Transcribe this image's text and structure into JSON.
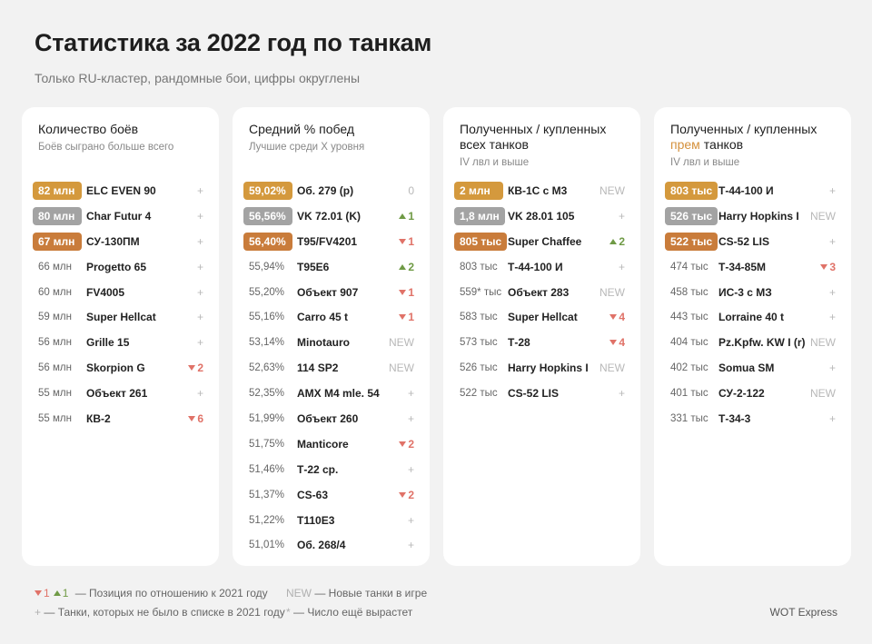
{
  "header": {
    "title": "Статистика за 2022 год по танкам",
    "subtitle": "Только RU-кластер, рандомные бои, цифры округлены"
  },
  "medal_colors": {
    "gold": "#d4993d",
    "silver": "#a3a3a3",
    "bronze": "#c97c3b"
  },
  "accent_color": "#d4913d",
  "cards": [
    {
      "title": [
        [
          {
            "text": "Количество боёв"
          }
        ]
      ],
      "subtitle": "Боёв сыграно больше всего",
      "rows": [
        {
          "value": "82 млн",
          "medal": "gold",
          "name": "ELC EVEN 90",
          "change": "+"
        },
        {
          "value": "80 млн",
          "medal": "silver",
          "name": "Char Futur 4",
          "change": "+"
        },
        {
          "value": "67 млн",
          "medal": "bronze",
          "name": "СУ-130ПМ",
          "change": "+"
        },
        {
          "value": "66 млн",
          "name": "Progetto 65",
          "change": "+"
        },
        {
          "value": "60 млн",
          "name": "FV4005",
          "change": "+"
        },
        {
          "value": "59 млн",
          "name": "Super Hellcat",
          "change": "+"
        },
        {
          "value": "56 млн",
          "name": "Grille 15",
          "change": "+"
        },
        {
          "value": "56 млн",
          "name": "Skorpion G",
          "change": {
            "dir": "down",
            "text": "2"
          }
        },
        {
          "value": "55 млн",
          "name": "Объект 261",
          "change": "+"
        },
        {
          "value": "55 млн",
          "name": "КВ-2",
          "change": {
            "dir": "down",
            "text": "6"
          }
        }
      ]
    },
    {
      "title": [
        [
          {
            "text": "Средний % побед"
          }
        ]
      ],
      "subtitle": "Лучшие среди X уровня",
      "rows": [
        {
          "value": "59,02%",
          "medal": "gold",
          "name": "Об. 279 (р)",
          "change": "0"
        },
        {
          "value": "56,56%",
          "medal": "silver",
          "name": "VK 72.01 (K)",
          "change": {
            "dir": "up",
            "text": "1"
          }
        },
        {
          "value": "56,40%",
          "medal": "bronze",
          "name": "T95/FV4201",
          "change": {
            "dir": "down",
            "text": "1"
          }
        },
        {
          "value": "55,94%",
          "name": "T95E6",
          "change": {
            "dir": "up",
            "text": "2"
          }
        },
        {
          "value": "55,20%",
          "name": "Объект 907",
          "change": {
            "dir": "down",
            "text": "1"
          }
        },
        {
          "value": "55,16%",
          "name": "Carro 45 t",
          "change": {
            "dir": "down",
            "text": "1"
          }
        },
        {
          "value": "53,14%",
          "name": "Minotauro",
          "change": "NEW"
        },
        {
          "value": "52,63%",
          "name": "114 SP2",
          "change": "NEW"
        },
        {
          "value": "52,35%",
          "name": "AMX M4 mle. 54",
          "change": "+"
        },
        {
          "value": "51,99%",
          "name": "Объект 260",
          "change": "+"
        },
        {
          "value": "51,75%",
          "name": "Manticore",
          "change": {
            "dir": "down",
            "text": "2"
          }
        },
        {
          "value": "51,46%",
          "name": "Т-22 ср.",
          "change": "+"
        },
        {
          "value": "51,37%",
          "name": "CS-63",
          "change": {
            "dir": "down",
            "text": "2"
          }
        },
        {
          "value": "51,22%",
          "name": "T110E3",
          "change": "+"
        },
        {
          "value": "51,01%",
          "name": "Об. 268/4",
          "change": "+"
        }
      ]
    },
    {
      "title": [
        [
          {
            "text": "Полученных / купленных"
          }
        ],
        [
          {
            "text": "всех танков"
          }
        ]
      ],
      "subtitle": "IV лвл и выше",
      "rows": [
        {
          "value": "2 млн",
          "medal": "gold",
          "name": "КВ-1С с М3",
          "change": "NEW"
        },
        {
          "value": "1,8 млн",
          "medal": "silver",
          "name": "VK 28.01 105",
          "change": "+"
        },
        {
          "value": "805 тыс",
          "medal": "bronze",
          "name": "Super Chaffee",
          "change": {
            "dir": "up",
            "text": "2"
          }
        },
        {
          "value": "803 тыс",
          "name": "Т-44-100 И",
          "change": "+"
        },
        {
          "value": "559* тыс",
          "name": "Объект 283",
          "change": "NEW"
        },
        {
          "value": "583 тыс",
          "name": "Super Hellcat",
          "change": {
            "dir": "down",
            "text": "4"
          }
        },
        {
          "value": "573 тыс",
          "name": "Т-28",
          "change": {
            "dir": "down",
            "text": "4"
          }
        },
        {
          "value": "526 тыс",
          "name": "Harry Hopkins I",
          "change": "NEW"
        },
        {
          "value": "522 тыс",
          "name": "CS-52 LIS",
          "change": "+"
        }
      ]
    },
    {
      "title": [
        [
          {
            "text": "Полученных / купленных"
          }
        ],
        [
          {
            "text": "прем",
            "accent": true
          },
          {
            "text": "танков"
          }
        ]
      ],
      "subtitle": "IV лвл и выше",
      "rows": [
        {
          "value": "803 тыс",
          "medal": "gold",
          "name": "Т-44-100 И",
          "change": "+"
        },
        {
          "value": "526 тыс",
          "medal": "silver",
          "name": "Harry Hopkins I",
          "change": "NEW"
        },
        {
          "value": "522 тыс",
          "medal": "bronze",
          "name": "CS-52 LIS",
          "change": "+"
        },
        {
          "value": "474 тыс",
          "name": "Т-34-85М",
          "change": {
            "dir": "down",
            "text": "3"
          }
        },
        {
          "value": "458 тыс",
          "name": "ИС-3 с МЗ",
          "change": "+"
        },
        {
          "value": "443 тыс",
          "name": "Lorraine 40 t",
          "change": "+"
        },
        {
          "value": "404 тыс",
          "name": "Pz.Kpfw. KW I (r)",
          "change": "NEW"
        },
        {
          "value": "402 тыс",
          "name": "Somua SM",
          "change": "+"
        },
        {
          "value": "401 тыс",
          "name": "СУ-2-122",
          "change": "NEW"
        },
        {
          "value": "331 тыс",
          "name": "Т-34-3",
          "change": "+"
        }
      ]
    }
  ],
  "footer": {
    "position": {
      "markers": [
        {
          "dir": "down",
          "text": "1"
        },
        {
          "dir": "up",
          "text": "1"
        }
      ],
      "text": "— Позиция по отношению к 2021 году"
    },
    "new": {
      "marker": "NEW",
      "text": "— Новые танки в игре"
    },
    "plus": {
      "marker": "+",
      "text": "— Танки, которых не было в списке в 2021 году"
    },
    "star": {
      "marker": "*",
      "text": "— Число ещё вырастет"
    },
    "brand": "WOT Express"
  }
}
